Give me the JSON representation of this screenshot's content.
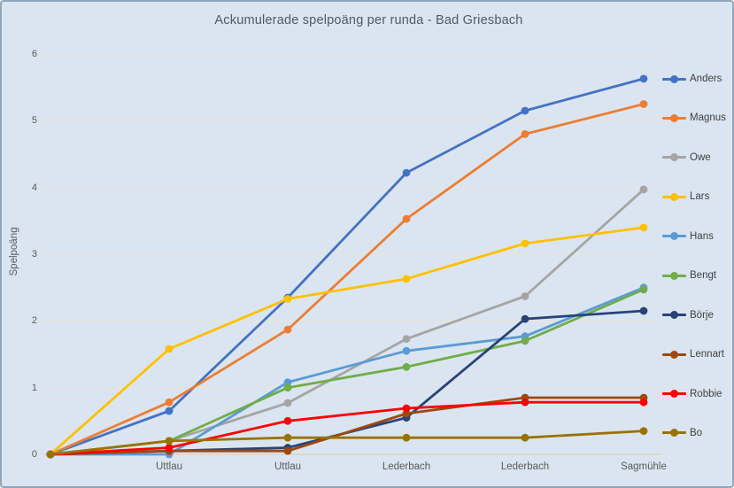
{
  "chart": {
    "title": "Ackumulerade spelpoäng per runda - Bad Griesbach",
    "ylabel": "Spelpoäng"
  },
  "chart_data": {
    "type": "line",
    "categories": [
      "",
      "Uttlau",
      "Uttlau",
      "Lederbach",
      "Lederbach",
      "Sagmühle"
    ],
    "ylim": [
      0,
      6
    ],
    "ytick_step": 1,
    "grid": true,
    "legend_position": "right",
    "series": [
      {
        "name": "Anders",
        "color": "#4472C4",
        "values": [
          0,
          0.65,
          2.35,
          4.22,
          5.15,
          5.63
        ]
      },
      {
        "name": "Magnus",
        "color": "#ED7D31",
        "values": [
          0,
          0.78,
          1.87,
          3.53,
          4.8,
          5.25
        ]
      },
      {
        "name": "Owe",
        "color": "#A5A5A5",
        "values": [
          0,
          0.2,
          0.77,
          1.73,
          2.37,
          3.97
        ]
      },
      {
        "name": "Lars",
        "color": "#FFC000",
        "values": [
          0,
          1.58,
          2.33,
          2.63,
          3.16,
          3.4
        ]
      },
      {
        "name": "Hans",
        "color": "#5B9BD5",
        "values": [
          0,
          0.0,
          1.08,
          1.55,
          1.77,
          2.5
        ]
      },
      {
        "name": "Bengt",
        "color": "#70AD47",
        "values": [
          0,
          0.2,
          1.0,
          1.31,
          1.7,
          2.47
        ]
      },
      {
        "name": "Börje",
        "color": "#264478",
        "values": [
          0,
          0.05,
          0.1,
          0.55,
          2.03,
          2.15
        ]
      },
      {
        "name": "Lennart",
        "color": "#9E480E",
        "values": [
          0,
          0.05,
          0.05,
          0.61,
          0.85,
          0.85
        ]
      },
      {
        "name": "Robbie",
        "color": "#FF0000",
        "values": [
          0,
          0.1,
          0.5,
          0.69,
          0.78,
          0.78
        ]
      },
      {
        "name": "Bo",
        "color": "#997300",
        "values": [
          0,
          0.2,
          0.25,
          0.25,
          0.25,
          0.35
        ]
      }
    ]
  },
  "colors": {
    "background": "#DBE5F1",
    "border": "#92A6BC",
    "gridline": "#E7E3DA",
    "axis_line": "#D9D3C6",
    "tick_text": "#595959",
    "title_text": "#4E5A67",
    "legend_text": "#3F3F3F"
  }
}
